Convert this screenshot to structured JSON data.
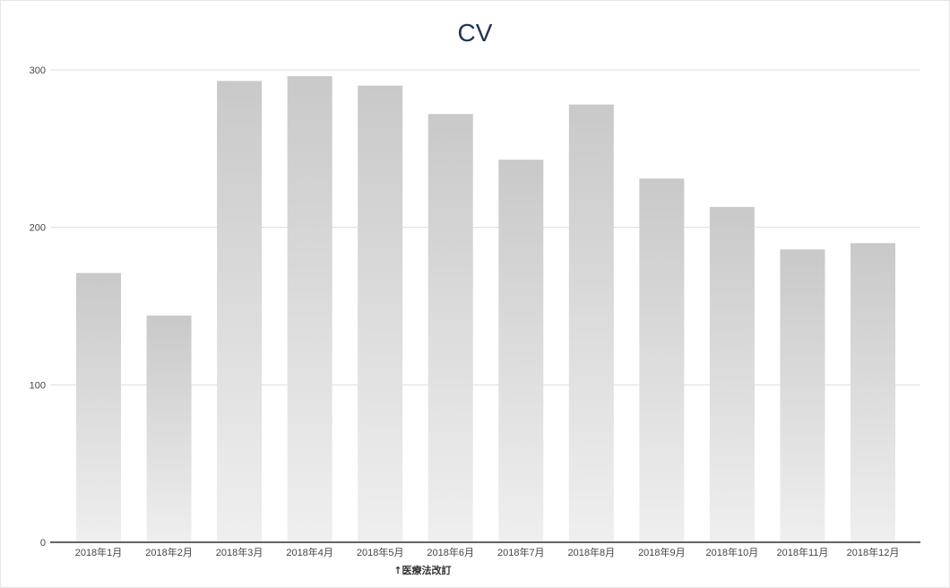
{
  "chart_data": {
    "type": "bar",
    "title": "CV",
    "xlabel": "",
    "ylabel": "",
    "categories": [
      "2018年1月",
      "2018年2月",
      "2018年3月",
      "2018年4月",
      "2018年5月",
      "2018年6月",
      "2018年7月",
      "2018年8月",
      "2018年9月",
      "2018年10月",
      "2018年11月",
      "2018年12月"
    ],
    "values": [
      171,
      144,
      293,
      296,
      290,
      272,
      243,
      278,
      231,
      213,
      186,
      190
    ],
    "ylim": [
      0,
      300
    ],
    "yticks": [
      0,
      100,
      200,
      300
    ],
    "grid": true,
    "legend": "none",
    "annotations": [
      {
        "text": "↑医療法改訂",
        "category": "2018年6月"
      }
    ],
    "colors": {
      "bar_top": "#c9c9c9",
      "bar_bottom": "#efefef",
      "grid": "#dddddd",
      "axis": "#333333",
      "title": "#1f3553"
    }
  }
}
